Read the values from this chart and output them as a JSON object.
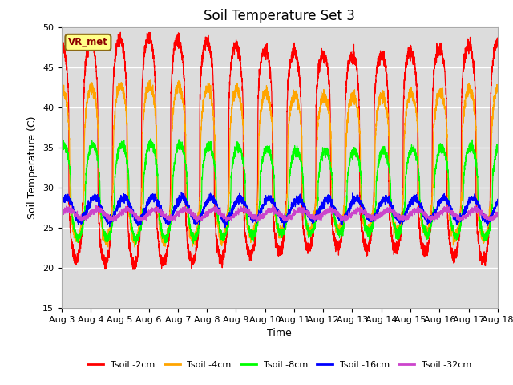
{
  "title": "Soil Temperature Set 3",
  "xlabel": "Time",
  "ylabel": "Soil Temperature (C)",
  "ylim": [
    15,
    50
  ],
  "x_tick_labels": [
    "Aug 3",
    "Aug 4",
    "Aug 5",
    "Aug 6",
    "Aug 7",
    "Aug 8",
    "Aug 9",
    "Aug 10",
    "Aug 11",
    "Aug 12",
    "Aug 13",
    "Aug 14",
    "Aug 15",
    "Aug 16",
    "Aug 17",
    "Aug 18"
  ],
  "annotation": "VR_met",
  "series": [
    {
      "label": "Tsoil -2cm",
      "color": "#FF0000",
      "mean": 34.5,
      "amp": 13.0,
      "phase": 0.0,
      "noise": 0.4,
      "peak_sharpness": 3.5
    },
    {
      "label": "Tsoil -4cm",
      "color": "#FFA500",
      "mean": 33.0,
      "amp": 9.0,
      "phase": 0.18,
      "noise": 0.35,
      "peak_sharpness": 2.5
    },
    {
      "label": "Tsoil -8cm",
      "color": "#00FF00",
      "mean": 29.5,
      "amp": 5.5,
      "phase": 0.45,
      "noise": 0.3,
      "peak_sharpness": 2.0
    },
    {
      "label": "Tsoil -16cm",
      "color": "#0000FF",
      "mean": 27.3,
      "amp": 1.4,
      "phase": 0.9,
      "noise": 0.25,
      "peak_sharpness": 1.0
    },
    {
      "label": "Tsoil -32cm",
      "color": "#CC44CC",
      "mean": 26.7,
      "amp": 0.55,
      "phase": 1.5,
      "noise": 0.18,
      "peak_sharpness": 1.0
    }
  ],
  "bg_color": "#DCDCDC",
  "fig_bg_color": "#FFFFFF",
  "grid_color": "#FFFFFF",
  "title_fontsize": 12,
  "axis_label_fontsize": 9,
  "tick_fontsize": 8
}
